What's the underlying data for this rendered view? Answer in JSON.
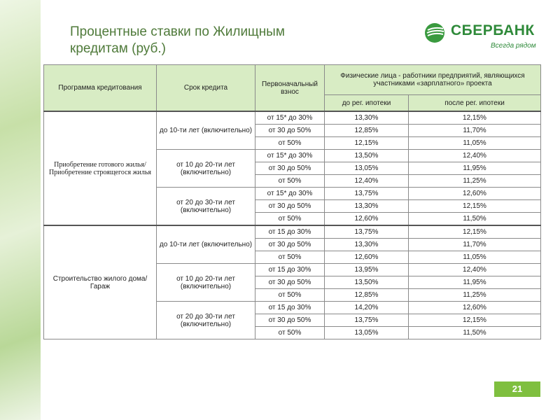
{
  "title": "Процентные ставки по Жилищным кредитам (руб.)",
  "logo": {
    "name": "СБЕРБАНК",
    "slogan": "Всегда рядом"
  },
  "page_number": "21",
  "table": {
    "headers": {
      "program": "Программа кредитования",
      "term": "Срок кредита",
      "down": "Первоначальный взнос",
      "group": "Физические лица - работники предприятий, являющихся участниками «зарплатного» проекта",
      "before": "до рег. ипотеки",
      "after": "после рег. ипотеки"
    },
    "programs": [
      {
        "name": "Приобретение готового жилья/ Приобретение строящегося жилья",
        "terms": [
          {
            "term": "до 10-ти лет (включительно)",
            "rows": [
              [
                "от 15* до 30%",
                "13,30%",
                "12,15%"
              ],
              [
                "от 30 до 50%",
                "12,85%",
                "11,70%"
              ],
              [
                "от 50%",
                "12,15%",
                "11,05%"
              ]
            ]
          },
          {
            "term": "от 10 до 20-ти лет (включительно)",
            "rows": [
              [
                "от 15* до 30%",
                "13,50%",
                "12,40%"
              ],
              [
                "от 30 до 50%",
                "13,05%",
                "11,95%"
              ],
              [
                "от 50%",
                "12,40%",
                "11,25%"
              ]
            ]
          },
          {
            "term": "от 20 до 30-ти лет (включительно)",
            "rows": [
              [
                "от 15* до 30%",
                "13,75%",
                "12,60%"
              ],
              [
                "от 30 до 50%",
                "13,30%",
                "12,15%"
              ],
              [
                "от 50%",
                "12,60%",
                "11,50%"
              ]
            ]
          }
        ]
      },
      {
        "name": "Строительство жилого дома/Гараж",
        "terms": [
          {
            "term": "до 10-ти лет (включительно)",
            "rows": [
              [
                "от 15 до 30%",
                "13,75%",
                "12,15%"
              ],
              [
                "от 30 до 50%",
                "13,30%",
                "11,70%"
              ],
              [
                "от 50%",
                "12,60%",
                "11,05%"
              ]
            ]
          },
          {
            "term": "от 10 до 20-ти лет (включительно)",
            "rows": [
              [
                "от 15 до 30%",
                "13,95%",
                "12,40%"
              ],
              [
                "от 30 до 50%",
                "13,50%",
                "11,95%"
              ],
              [
                "от 50%",
                "12,85%",
                "11,25%"
              ]
            ]
          },
          {
            "term": "от 20 до 30-ти лет (включительно)",
            "rows": [
              [
                "от 15 до 30%",
                "14,20%",
                "12,60%"
              ],
              [
                "от 30 до 50%",
                "13,75%",
                "12,15%"
              ],
              [
                "от 50%",
                "13,05%",
                "11,50%"
              ]
            ]
          }
        ]
      }
    ]
  }
}
